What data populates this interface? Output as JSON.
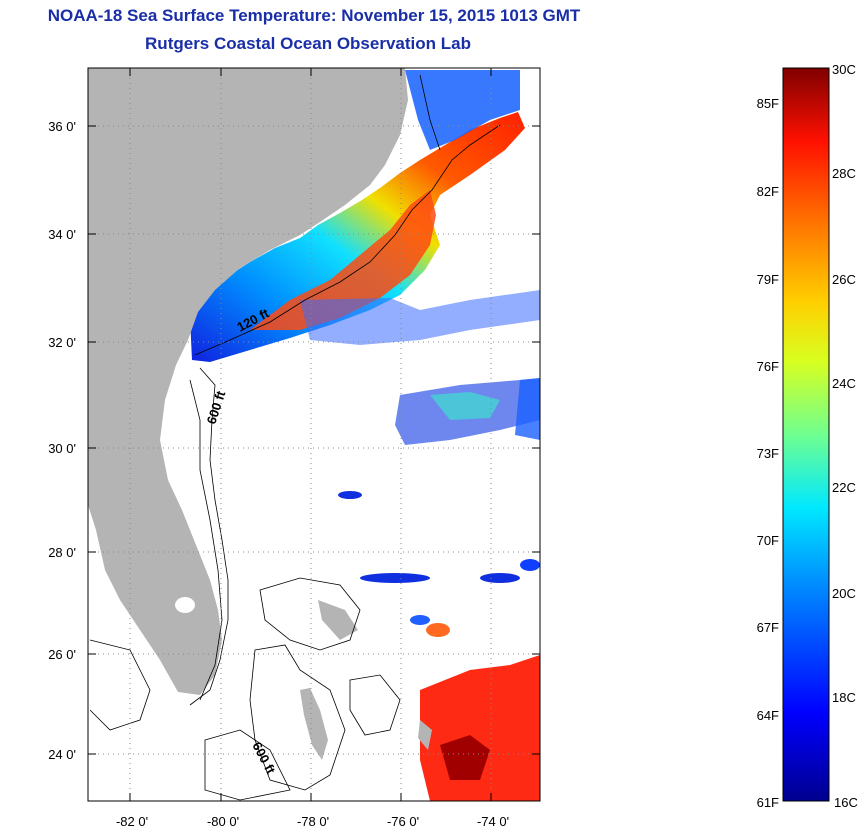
{
  "header": {
    "title": "NOAA-18 Sea Surface Temperature:  November 15, 2015 1013 GMT",
    "subtitle": "Rutgers Coastal Ocean Observation Lab"
  },
  "map": {
    "lat_labels": [
      "36 0'",
      "34 0'",
      "32 0'",
      "30 0'",
      "28 0'",
      "26 0'",
      "24 0'"
    ],
    "lon_labels": [
      "-82 0'",
      "-80 0'",
      "-78 0'",
      "-76 0'",
      "-74 0'"
    ],
    "contour_labels": {
      "shelf_120": "120 ft",
      "slope_600_north": "600 ft",
      "slope_600_south": "600 ft"
    },
    "colors": {
      "land": "#b4b4b4",
      "ocean_nodata": "#ffffff",
      "grid": "#888888"
    }
  },
  "colorbar": {
    "celsius_labels": [
      "30C",
      "28C",
      "26C",
      "24C",
      "22C",
      "20C",
      "18C",
      "16C"
    ],
    "fahrenheit_labels": [
      "85F",
      "82F",
      "79F",
      "76F",
      "73F",
      "70F",
      "67F",
      "64F",
      "61F"
    ],
    "range_c": [
      16,
      30
    ]
  }
}
